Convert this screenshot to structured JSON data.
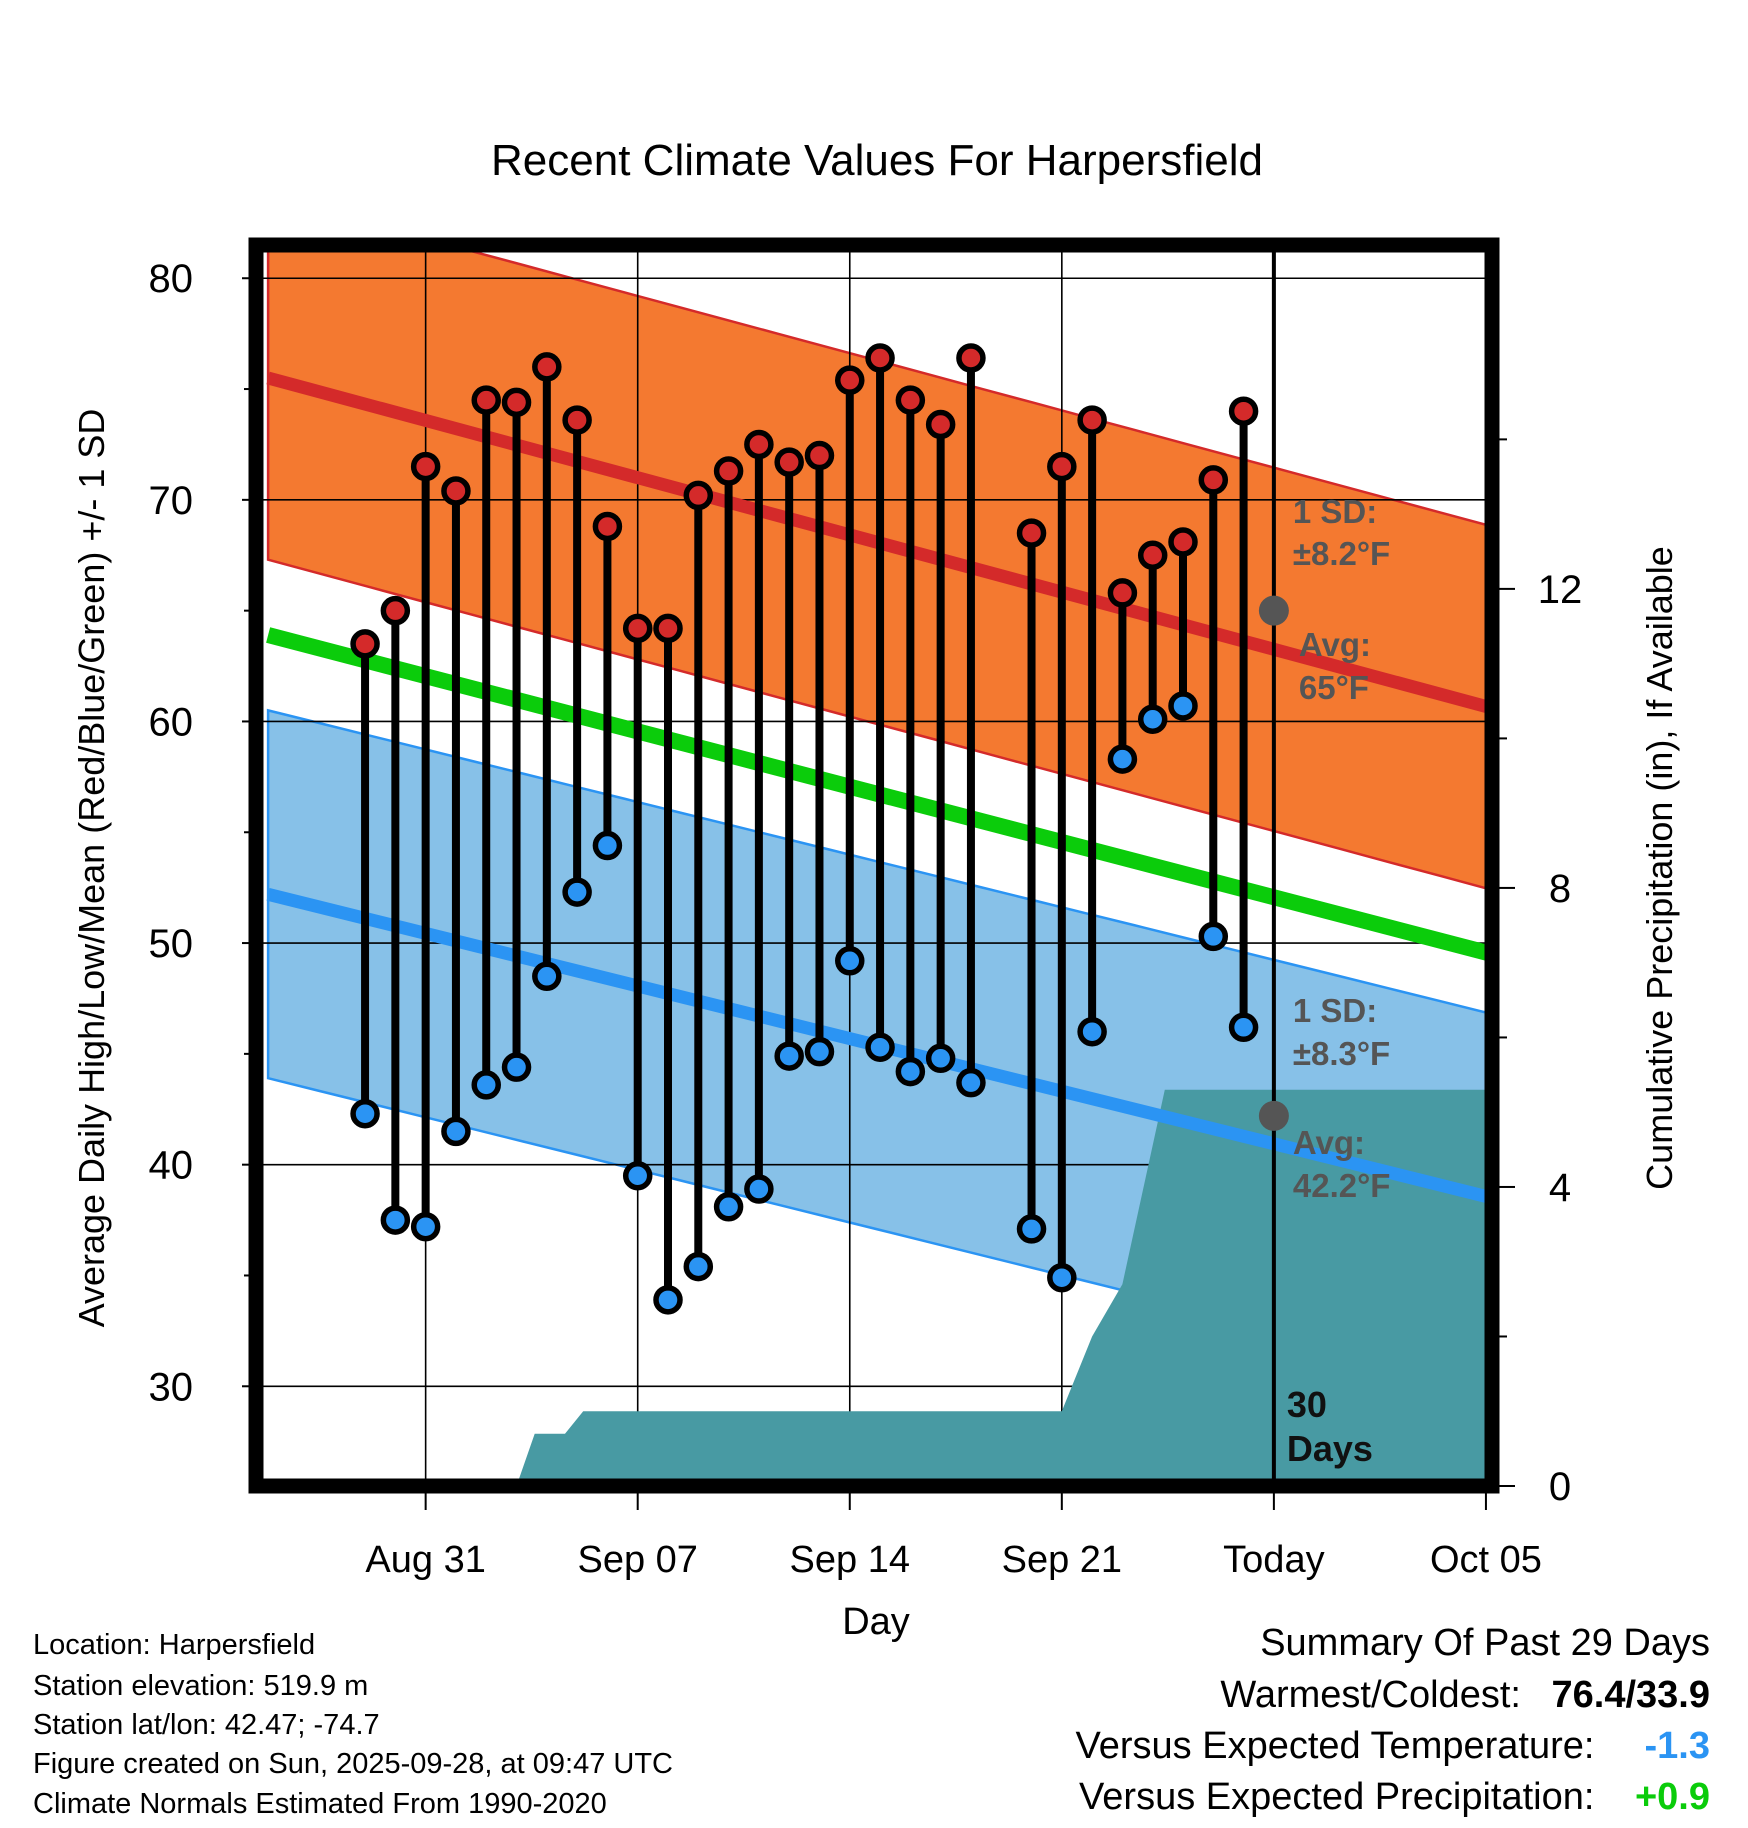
{
  "chart_data": {
    "type": "line",
    "title": "Recent Climate Values For Harpersfield",
    "xlabel": "Day",
    "ylabel": "Average Daily High/Low/Mean (Red/Blue/Green) +/- 1 SD",
    "y2label": "Cumulative Precipitation (in), If Available",
    "ylim": [
      25.5,
      81.5
    ],
    "y2lim": [
      0,
      16.6
    ],
    "xlim": [
      -3.6,
      37.2
    ],
    "yticks": [
      30,
      40,
      50,
      60,
      70,
      80
    ],
    "y2ticks": [
      0,
      4,
      8,
      12
    ],
    "x_tick_positions": [
      2,
      9,
      16,
      23,
      30,
      37
    ],
    "x_tick_labels": [
      "Aug 31",
      "Sep 07",
      "Sep 14",
      "Sep 21",
      "Today",
      "Oct 05"
    ],
    "days": [
      0,
      1,
      2,
      3,
      4,
      5,
      6,
      7,
      8,
      9,
      10,
      11,
      12,
      13,
      14,
      15,
      16,
      17,
      18,
      19,
      20,
      22,
      23,
      24,
      25,
      26,
      27,
      28,
      29
    ],
    "highs": [
      63.5,
      65.0,
      71.5,
      70.4,
      74.5,
      74.4,
      76.0,
      73.6,
      68.8,
      64.2,
      64.2,
      70.2,
      71.3,
      72.5,
      71.7,
      72.0,
      75.4,
      76.4,
      74.5,
      73.4,
      76.4,
      68.5,
      71.5,
      73.6,
      65.8,
      67.5,
      68.1,
      70.9,
      74.0
    ],
    "lows": [
      42.3,
      37.5,
      37.2,
      41.5,
      43.6,
      44.4,
      48.5,
      52.3,
      54.4,
      39.5,
      33.9,
      35.4,
      38.1,
      38.9,
      44.9,
      45.1,
      49.2,
      45.3,
      44.2,
      44.8,
      43.7,
      37.1,
      34.9,
      46.0,
      58.3,
      60.1,
      60.7,
      50.3,
      46.2
    ],
    "normal_high": {
      "x": [
        -3.2,
        37.2
      ],
      "y": [
        75.5,
        60.6
      ],
      "sd": 8.2,
      "sd_label": "±8.2°F",
      "today_avg": "65°F",
      "today_value": 65.0
    },
    "normal_low": {
      "x": [
        -3.2,
        37.2
      ],
      "y": [
        52.2,
        38.5
      ],
      "sd": 8.3,
      "sd_label": "±8.3°F",
      "today_avg": "42.2°F",
      "today_value": 42.2
    },
    "normal_mean": {
      "x": [
        -3.2,
        37.2
      ],
      "y": [
        63.9,
        49.5
      ]
    },
    "precip_cumulative": {
      "x": [
        5.0,
        5.6,
        6.6,
        7.2,
        21.0,
        22.0,
        23.0,
        23.6,
        24.0,
        25.0,
        26.4,
        27.0,
        37.2
      ],
      "y": [
        0.0,
        0.7,
        0.7,
        1.0,
        1.0,
        1.0,
        1.0,
        1.6,
        2.0,
        2.7,
        5.3,
        5.3,
        5.3
      ]
    },
    "annotations": {
      "sd_title": "1 SD:",
      "avg_title": "Avg:",
      "window_line1": "30",
      "window_line2": "Days"
    },
    "colors": {
      "high_band": "#f47930",
      "high_line": "#d42a2a",
      "low_band": "#87c1e8",
      "low_line": "#2b94f3",
      "mean_line": "#0bcc0b",
      "precip": "#489aa3",
      "high_dot": "#d42a2a",
      "low_dot": "#2b94f3"
    }
  },
  "info": {
    "location": "Location: Harpersfield",
    "elevation": "Station elevation: 519.9 m",
    "latlon": "Station lat/lon: 42.47; -74.7",
    "created": "Figure created on Sun, 2025-09-28, at 09:47 UTC",
    "normals": "Climate Normals Estimated From 1990-2020"
  },
  "summary": {
    "title": "Summary Of Past 29 Days",
    "warm_label": "Warmest/Coldest:",
    "warm_value": "76.4/33.9",
    "temp_label": "Versus Expected Temperature:",
    "temp_value": "-1.3",
    "temp_color": "#2b94f3",
    "precip_label": "Versus Expected Precipitation:",
    "precip_value": "+0.9",
    "precip_color": "#0bcc0b"
  }
}
